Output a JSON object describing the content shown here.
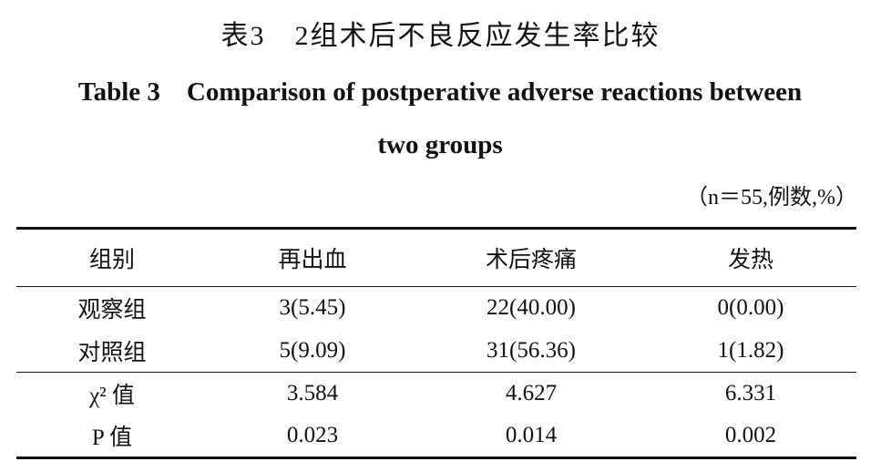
{
  "header": {
    "title_cn": "表3　2组术后不良反应发生率比较",
    "title_en": "Table 3　Comparison of postperative adverse reactions between two groups",
    "note": "（n＝55,例数,%）"
  },
  "table": {
    "columns": [
      "组别",
      "再出血",
      "术后疼痛",
      "发热"
    ],
    "rows": [
      [
        "观察组",
        "3(5.45)",
        "22(40.00)",
        "0(0.00)"
      ],
      [
        "对照组",
        "5(9.09)",
        "31(56.36)",
        "1(1.82)"
      ]
    ],
    "stats": [
      [
        "χ² 值",
        "3.584",
        "4.627",
        "6.331"
      ],
      [
        "P 值",
        "0.023",
        "0.014",
        "0.002"
      ]
    ]
  }
}
